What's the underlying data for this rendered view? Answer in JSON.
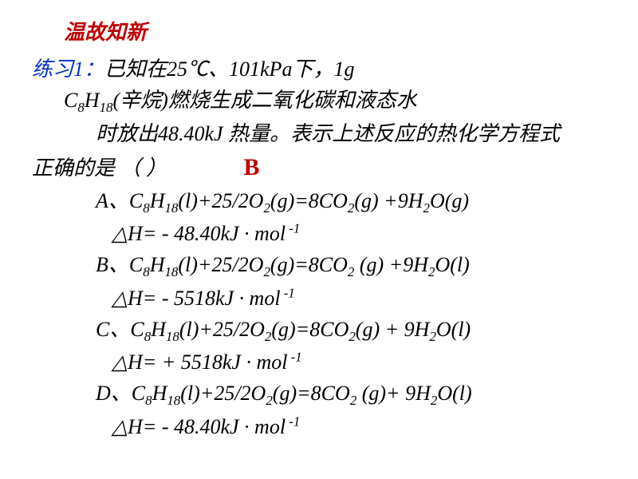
{
  "header": "温故知新",
  "exercise_label": "练习1：",
  "line1_text": "已知在25℃、101kPa下，1g",
  "line2_prefix": "C",
  "line2_sub1": "8",
  "line2_mid1": "H",
  "line2_sub2": "18",
  "line2_text": "(辛烷)燃烧生成二氧化碳和液态水",
  "line3_text": "时放出48.40kJ 热量。表示上述反应的热化学方程式",
  "line4_text": "正确的是 （ ）",
  "answer": "B",
  "options": [
    {
      "label": "A、",
      "eq_parts": [
        "C",
        "8",
        "H",
        "18",
        "(l)+25/2O",
        "2",
        "(g)=8CO",
        "2",
        "(g) +9H",
        "2",
        "O(g)"
      ],
      "dh": "△H= - 48.40kJ · mol",
      "dh_sup": " -1"
    },
    {
      "label": "B、",
      "eq_parts": [
        "C",
        "8",
        "H",
        "18",
        "(l)+25/2O",
        "2",
        "(g)=8CO",
        "2",
        " (g) +9H",
        "2",
        "O(l)"
      ],
      "dh": "△H= - 5518kJ · mol",
      "dh_sup": " -1"
    },
    {
      "label": "C、",
      "eq_parts": [
        "C",
        "8",
        "H",
        "18",
        "(l)+25/2O",
        "2",
        "(g)=8CO",
        "2",
        "(g) + 9H",
        "2",
        "O(l)"
      ],
      "dh": "△H= + 5518kJ · mol",
      "dh_sup": " -1"
    },
    {
      "label": "D、",
      "eq_parts": [
        "C",
        "8",
        "H",
        "18",
        "(l)+25/2O",
        "2",
        "(g)=8CO",
        "2",
        " (g)+ 9H",
        "2",
        "O(l)"
      ],
      "dh": "△H= -  48.40kJ · mol",
      "dh_sup": " -1"
    }
  ]
}
